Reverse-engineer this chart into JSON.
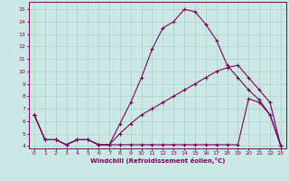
{
  "xlabel": "Windchill (Refroidissement éolien,°C)",
  "background_color": "#cce8e4",
  "grid_color": "#aacfcc",
  "line_color": "#800060",
  "xlim": [
    -0.5,
    23.5
  ],
  "ylim": [
    3.8,
    15.6
  ],
  "yticks": [
    4,
    5,
    6,
    7,
    8,
    9,
    10,
    11,
    12,
    13,
    14,
    15
  ],
  "xticks": [
    0,
    1,
    2,
    3,
    4,
    5,
    6,
    7,
    8,
    9,
    10,
    11,
    12,
    13,
    14,
    15,
    16,
    17,
    18,
    19,
    20,
    21,
    22,
    23
  ],
  "series1_x": [
    0,
    1,
    2,
    3,
    4,
    5,
    6,
    7,
    8,
    9,
    10,
    11,
    12,
    13,
    14,
    15,
    16,
    17,
    18,
    19,
    20,
    21,
    22,
    23
  ],
  "series1_y": [
    6.5,
    4.5,
    4.5,
    4.1,
    4.5,
    4.5,
    4.1,
    4.1,
    5.8,
    7.5,
    9.5,
    11.8,
    13.5,
    14.0,
    15.0,
    14.8,
    13.8,
    12.5,
    10.5,
    9.5,
    8.5,
    7.7,
    6.5,
    4.0
  ],
  "series2_x": [
    0,
    1,
    2,
    3,
    4,
    5,
    6,
    7,
    8,
    9,
    10,
    11,
    12,
    13,
    14,
    15,
    16,
    17,
    18,
    19,
    20,
    21,
    22,
    23
  ],
  "series2_y": [
    6.5,
    4.5,
    4.5,
    4.1,
    4.5,
    4.5,
    4.1,
    4.1,
    5.0,
    5.8,
    6.5,
    7.0,
    7.5,
    8.0,
    8.5,
    9.0,
    9.5,
    10.0,
    10.3,
    10.5,
    9.5,
    8.5,
    7.5,
    4.0
  ],
  "series3_x": [
    0,
    1,
    2,
    3,
    4,
    5,
    6,
    7,
    8,
    9,
    10,
    11,
    12,
    13,
    14,
    15,
    16,
    17,
    18,
    19,
    20,
    21,
    22,
    23
  ],
  "series3_y": [
    6.5,
    4.5,
    4.5,
    4.1,
    4.5,
    4.5,
    4.1,
    4.1,
    4.1,
    4.1,
    4.1,
    4.1,
    4.1,
    4.1,
    4.1,
    4.1,
    4.1,
    4.1,
    4.1,
    4.1,
    7.8,
    7.5,
    6.5,
    4.0
  ]
}
